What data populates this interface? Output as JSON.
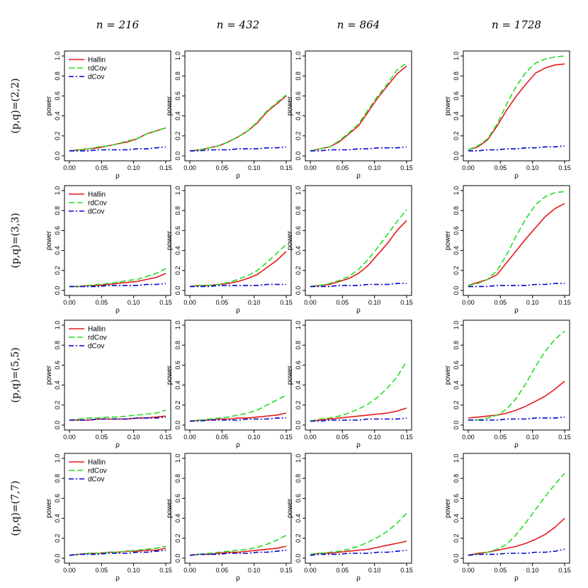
{
  "chart_data": {
    "type": "line",
    "columns": [
      "n = 216",
      "n = 432",
      "n = 864",
      "n = 1728"
    ],
    "rows": [
      "(p,q)=(2,2)",
      "(p,q)=(3,3)",
      "(p,q)=(5,5)",
      "(p,q)=(7,7)"
    ],
    "xlabel": "ρ",
    "ylabel": "power",
    "xlim": [
      0,
      0.15
    ],
    "ylim": [
      0,
      1
    ],
    "xticks": [
      0,
      0.05,
      0.1,
      0.15
    ],
    "xtick_labels": [
      "0.00",
      "0.05",
      "0.10",
      "0.15"
    ],
    "yticks": [
      0,
      0.2,
      0.4,
      0.6,
      0.8,
      1.0
    ],
    "ytick_labels": [
      "0.0",
      "0.2",
      "0.4",
      "0.6",
      "0.8",
      "1.0"
    ],
    "x": [
      0,
      0.015,
      0.03,
      0.045,
      0.06,
      0.075,
      0.09,
      0.105,
      0.12,
      0.135,
      0.15
    ],
    "legend": {
      "placement": "top-left",
      "entries": [
        "Hallin",
        "rdCov",
        "dCov"
      ],
      "shown_in_column": 0
    },
    "series_styles": [
      {
        "name": "Hallin",
        "color": "#e41a1c",
        "dash": "solid"
      },
      {
        "name": "rdCov",
        "color": "#22dd22",
        "dash": "dashed"
      },
      {
        "name": "dCov",
        "color": "#0000cc",
        "dash": "dotdash"
      }
    ],
    "panels": [
      [
        {
          "Hallin": [
            0.05,
            0.06,
            0.07,
            0.08,
            0.1,
            0.12,
            0.14,
            0.17,
            0.22,
            0.25,
            0.28
          ],
          "rdCov": [
            0.05,
            0.06,
            0.07,
            0.09,
            0.1,
            0.12,
            0.15,
            0.17,
            0.22,
            0.25,
            0.28
          ],
          "dCov": [
            0.05,
            0.05,
            0.05,
            0.06,
            0.06,
            0.06,
            0.06,
            0.07,
            0.07,
            0.08,
            0.09
          ]
        },
        {
          "Hallin": [
            0.05,
            0.06,
            0.08,
            0.1,
            0.14,
            0.19,
            0.25,
            0.33,
            0.44,
            0.52,
            0.6
          ],
          "rdCov": [
            0.05,
            0.06,
            0.08,
            0.1,
            0.14,
            0.19,
            0.25,
            0.34,
            0.45,
            0.53,
            0.61
          ],
          "dCov": [
            0.05,
            0.05,
            0.06,
            0.06,
            0.06,
            0.07,
            0.07,
            0.07,
            0.08,
            0.08,
            0.09
          ]
        },
        {
          "Hallin": [
            0.05,
            0.07,
            0.09,
            0.14,
            0.22,
            0.3,
            0.44,
            0.58,
            0.7,
            0.82,
            0.9
          ],
          "rdCov": [
            0.05,
            0.07,
            0.09,
            0.15,
            0.23,
            0.32,
            0.46,
            0.6,
            0.72,
            0.86,
            0.93
          ],
          "dCov": [
            0.05,
            0.05,
            0.06,
            0.06,
            0.06,
            0.07,
            0.07,
            0.08,
            0.08,
            0.08,
            0.09
          ]
        },
        {
          "Hallin": [
            0.06,
            0.09,
            0.16,
            0.3,
            0.46,
            0.6,
            0.72,
            0.83,
            0.88,
            0.91,
            0.92
          ],
          "rdCov": [
            0.06,
            0.1,
            0.17,
            0.32,
            0.52,
            0.7,
            0.84,
            0.93,
            0.97,
            0.99,
            1.0
          ],
          "dCov": [
            0.05,
            0.05,
            0.06,
            0.06,
            0.07,
            0.07,
            0.08,
            0.08,
            0.09,
            0.09,
            0.1
          ]
        }
      ],
      [
        {
          "Hallin": [
            0.04,
            0.04,
            0.05,
            0.05,
            0.06,
            0.07,
            0.08,
            0.09,
            0.11,
            0.13,
            0.17
          ],
          "rdCov": [
            0.04,
            0.04,
            0.05,
            0.06,
            0.07,
            0.08,
            0.1,
            0.11,
            0.14,
            0.17,
            0.22
          ],
          "dCov": [
            0.04,
            0.04,
            0.04,
            0.04,
            0.05,
            0.05,
            0.05,
            0.05,
            0.06,
            0.06,
            0.07
          ]
        },
        {
          "Hallin": [
            0.04,
            0.05,
            0.05,
            0.06,
            0.07,
            0.09,
            0.12,
            0.16,
            0.23,
            0.3,
            0.39
          ],
          "rdCov": [
            0.04,
            0.05,
            0.05,
            0.06,
            0.08,
            0.11,
            0.15,
            0.2,
            0.28,
            0.37,
            0.46
          ],
          "dCov": [
            0.04,
            0.04,
            0.04,
            0.05,
            0.05,
            0.05,
            0.05,
            0.05,
            0.06,
            0.06,
            0.06
          ]
        },
        {
          "Hallin": [
            0.04,
            0.05,
            0.06,
            0.09,
            0.12,
            0.17,
            0.25,
            0.36,
            0.47,
            0.6,
            0.7
          ],
          "rdCov": [
            0.04,
            0.05,
            0.07,
            0.1,
            0.14,
            0.21,
            0.31,
            0.43,
            0.56,
            0.69,
            0.81
          ],
          "dCov": [
            0.04,
            0.04,
            0.04,
            0.05,
            0.05,
            0.05,
            0.06,
            0.06,
            0.06,
            0.07,
            0.07
          ]
        },
        {
          "Hallin": [
            0.05,
            0.08,
            0.11,
            0.16,
            0.28,
            0.4,
            0.52,
            0.63,
            0.74,
            0.82,
            0.87
          ],
          "rdCov": [
            0.05,
            0.07,
            0.11,
            0.2,
            0.36,
            0.55,
            0.72,
            0.86,
            0.94,
            0.98,
            0.99
          ],
          "dCov": [
            0.04,
            0.04,
            0.04,
            0.05,
            0.05,
            0.05,
            0.05,
            0.06,
            0.06,
            0.07,
            0.07
          ]
        }
      ],
      [
        {
          "Hallin": [
            0.05,
            0.05,
            0.05,
            0.06,
            0.06,
            0.06,
            0.06,
            0.07,
            0.07,
            0.08,
            0.09
          ],
          "rdCov": [
            0.05,
            0.06,
            0.07,
            0.07,
            0.08,
            0.08,
            0.09,
            0.1,
            0.11,
            0.12,
            0.15
          ],
          "dCov": [
            0.05,
            0.05,
            0.05,
            0.06,
            0.06,
            0.06,
            0.06,
            0.07,
            0.07,
            0.07,
            0.08
          ]
        },
        {
          "Hallin": [
            0.04,
            0.05,
            0.05,
            0.06,
            0.06,
            0.07,
            0.07,
            0.08,
            0.09,
            0.1,
            0.12
          ],
          "rdCov": [
            0.04,
            0.05,
            0.06,
            0.07,
            0.08,
            0.1,
            0.12,
            0.15,
            0.2,
            0.25,
            0.3
          ],
          "dCov": [
            0.04,
            0.04,
            0.05,
            0.05,
            0.05,
            0.05,
            0.06,
            0.06,
            0.06,
            0.07,
            0.07
          ]
        },
        {
          "Hallin": [
            0.04,
            0.05,
            0.06,
            0.07,
            0.08,
            0.09,
            0.1,
            0.11,
            0.12,
            0.14,
            0.17
          ],
          "rdCov": [
            0.04,
            0.06,
            0.07,
            0.09,
            0.12,
            0.16,
            0.21,
            0.28,
            0.37,
            0.48,
            0.64
          ],
          "dCov": [
            0.04,
            0.04,
            0.05,
            0.05,
            0.05,
            0.05,
            0.06,
            0.06,
            0.06,
            0.06,
            0.07
          ]
        },
        {
          "Hallin": [
            0.07,
            0.08,
            0.09,
            0.1,
            0.12,
            0.15,
            0.19,
            0.24,
            0.29,
            0.36,
            0.44
          ],
          "rdCov": [
            0.05,
            0.05,
            0.07,
            0.1,
            0.16,
            0.27,
            0.42,
            0.59,
            0.74,
            0.86,
            0.94
          ],
          "dCov": [
            0.05,
            0.05,
            0.05,
            0.05,
            0.06,
            0.06,
            0.06,
            0.07,
            0.07,
            0.07,
            0.08
          ]
        }
      ],
      [
        {
          "Hallin": [
            0.03,
            0.04,
            0.05,
            0.05,
            0.06,
            0.06,
            0.07,
            0.07,
            0.08,
            0.08,
            0.1
          ],
          "rdCov": [
            0.03,
            0.04,
            0.05,
            0.05,
            0.06,
            0.06,
            0.07,
            0.08,
            0.09,
            0.1,
            0.12
          ],
          "dCov": [
            0.03,
            0.04,
            0.04,
            0.04,
            0.05,
            0.05,
            0.05,
            0.06,
            0.06,
            0.07,
            0.08
          ]
        },
        {
          "Hallin": [
            0.03,
            0.04,
            0.04,
            0.05,
            0.06,
            0.06,
            0.07,
            0.08,
            0.09,
            0.1,
            0.12
          ],
          "rdCov": [
            0.03,
            0.04,
            0.05,
            0.06,
            0.07,
            0.08,
            0.09,
            0.11,
            0.14,
            0.18,
            0.23
          ],
          "dCov": [
            0.03,
            0.04,
            0.04,
            0.04,
            0.05,
            0.05,
            0.05,
            0.06,
            0.06,
            0.07,
            0.08
          ]
        },
        {
          "Hallin": [
            0.04,
            0.05,
            0.05,
            0.06,
            0.07,
            0.08,
            0.09,
            0.11,
            0.13,
            0.15,
            0.17
          ],
          "rdCov": [
            0.04,
            0.05,
            0.06,
            0.07,
            0.09,
            0.12,
            0.16,
            0.21,
            0.27,
            0.35,
            0.45
          ],
          "dCov": [
            0.03,
            0.04,
            0.04,
            0.04,
            0.05,
            0.05,
            0.05,
            0.06,
            0.06,
            0.07,
            0.08
          ]
        },
        {
          "Hallin": [
            0.03,
            0.05,
            0.06,
            0.08,
            0.1,
            0.12,
            0.15,
            0.19,
            0.24,
            0.31,
            0.4
          ],
          "rdCov": [
            0.03,
            0.04,
            0.06,
            0.09,
            0.14,
            0.24,
            0.36,
            0.49,
            0.62,
            0.74,
            0.85
          ],
          "dCov": [
            0.03,
            0.04,
            0.04,
            0.04,
            0.05,
            0.05,
            0.05,
            0.06,
            0.06,
            0.07,
            0.09
          ]
        }
      ]
    ]
  }
}
